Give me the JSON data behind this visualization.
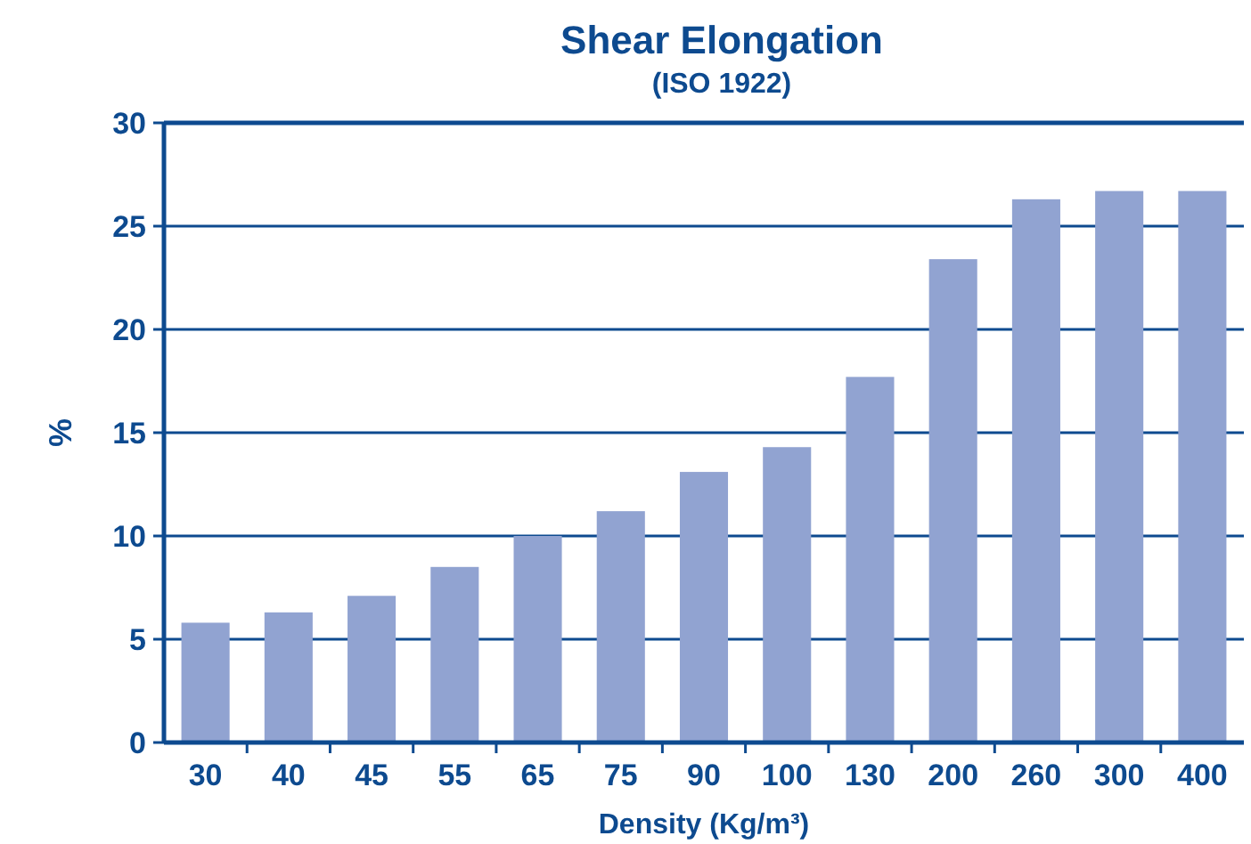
{
  "chart_data": {
    "type": "bar",
    "title": "Shear Elongation",
    "subtitle": "(ISO 1922)",
    "xlabel": "Density (Kg/m³)",
    "ylabel": "%",
    "categories": [
      "30",
      "40",
      "45",
      "55",
      "65",
      "75",
      "90",
      "100",
      "130",
      "200",
      "260",
      "300",
      "400"
    ],
    "values": [
      5.8,
      6.3,
      7.1,
      8.5,
      10.0,
      11.2,
      13.1,
      14.3,
      17.7,
      23.4,
      26.3,
      26.7,
      26.7
    ],
    "color": "#91a3d1",
    "ylim": [
      0,
      30
    ],
    "yticks": [
      0,
      5,
      10,
      15,
      20,
      25,
      30
    ],
    "grid": "y"
  }
}
